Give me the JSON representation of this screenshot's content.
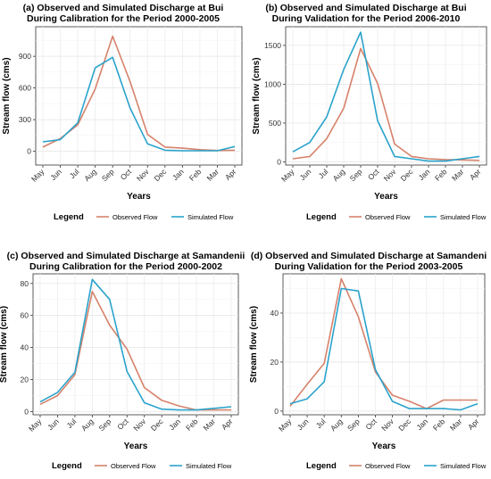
{
  "chart_data": [
    {
      "type": "line",
      "title": [
        "(a) Observed and Simulated Discharge at Bui",
        "During Calibration for the Period 2000-2005"
      ],
      "xlabel": "Years",
      "ylabel": "Stream flow (cms)",
      "categories": [
        "May",
        "Jun",
        "Jul",
        "Aug",
        "Sep",
        "Oct",
        "Nov",
        "Dec",
        "Jan",
        "Feb",
        "Mar",
        "Apr"
      ],
      "ylim": [
        -130,
        1180
      ],
      "yticks": [
        0,
        300,
        600,
        900
      ],
      "grid": true,
      "legend_title": "Legend",
      "legend_position": "bottom",
      "series": [
        {
          "name": "Observed Flow",
          "color": "#D6826B",
          "values": [
            40,
            120,
            250,
            590,
            1090,
            660,
            160,
            40,
            30,
            15,
            8,
            10
          ]
        },
        {
          "name": "Simulated Flow",
          "color": "#2AA3CC",
          "values": [
            90,
            110,
            270,
            790,
            890,
            410,
            70,
            10,
            5,
            5,
            5,
            45
          ]
        }
      ]
    },
    {
      "type": "line",
      "title": [
        "(b) Observed and Simulated Discharge at Bui",
        "During Validation for the Period 2006-2010"
      ],
      "xlabel": "Years",
      "ylabel": "Stream flow (cms)",
      "categories": [
        "May",
        "Jun",
        "Jul",
        "Aug",
        "Sep",
        "Oct",
        "Nov",
        "Dec",
        "Jan",
        "Feb",
        "Mar",
        "Apr"
      ],
      "ylim": [
        -40,
        1740
      ],
      "yticks": [
        0,
        500,
        1000,
        1500
      ],
      "grid": true,
      "legend_title": "Legend",
      "legend_position": "bottom",
      "series": [
        {
          "name": "Observed Flow",
          "color": "#D6826B",
          "values": [
            40,
            70,
            300,
            690,
            1460,
            1010,
            230,
            70,
            40,
            30,
            25,
            20
          ]
        },
        {
          "name": "Simulated Flow",
          "color": "#2AA3CC",
          "values": [
            130,
            250,
            580,
            1190,
            1670,
            530,
            70,
            40,
            10,
            10,
            40,
            70
          ]
        }
      ]
    },
    {
      "type": "line",
      "title": [
        "(c) Observed and Simulated Discharge at Samandenii",
        "During Calibration for the Period 2000-2002"
      ],
      "xlabel": "Years",
      "ylabel": "Stream flow (cms)",
      "categories": [
        "May",
        "Jun",
        "Jul",
        "Aug",
        "Sep",
        "Oct",
        "Nov",
        "Dec",
        "Jan",
        "Feb",
        "Mar",
        "Apr"
      ],
      "ylim": [
        -2,
        86
      ],
      "yticks": [
        0,
        20,
        40,
        60,
        80
      ],
      "grid": true,
      "legend_title": "Legend",
      "legend_position": "bottom",
      "series": [
        {
          "name": "Observed Flow",
          "color": "#D6826B",
          "values": [
            4.5,
            10,
            23,
            75,
            54,
            39,
            15,
            7,
            3.5,
            1,
            1,
            1
          ]
        },
        {
          "name": "Simulated Flow",
          "color": "#2AA3CC",
          "values": [
            6,
            12,
            24.5,
            82.5,
            70,
            25,
            5.5,
            1.5,
            1,
            1,
            2,
            3
          ]
        }
      ]
    },
    {
      "type": "line",
      "title": [
        "(d) Observed and Simulated Discharge at Samandeni",
        "During Validation for the Period 2003-2005"
      ],
      "xlabel": "Years",
      "ylabel": "Stream flow (cms)",
      "categories": [
        "May",
        "Jun",
        "Jul",
        "Aug",
        "Sep",
        "Oct",
        "Nov",
        "Dec",
        "Jan",
        "Feb",
        "Mar",
        "Apr"
      ],
      "ylim": [
        -1.5,
        56
      ],
      "yticks": [
        0,
        20,
        40
      ],
      "grid": true,
      "legend_title": "Legend",
      "legend_position": "bottom",
      "series": [
        {
          "name": "Observed Flow",
          "color": "#D6826B",
          "values": [
            2,
            11,
            19.5,
            54,
            38.5,
            16,
            6.5,
            4,
            1,
            4.5,
            4.5,
            4.5
          ]
        },
        {
          "name": "Simulated Flow",
          "color": "#2AA3CC",
          "values": [
            3,
            5,
            12,
            50,
            49,
            17,
            4,
            1,
            1,
            1,
            0.5,
            3
          ]
        }
      ]
    }
  ]
}
